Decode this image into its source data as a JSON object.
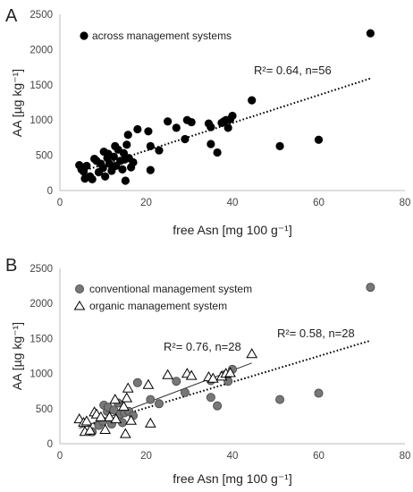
{
  "chart_data": [
    {
      "panel": "A",
      "type": "scatter",
      "xlabel": "free Asn [mg 100 g⁻¹]",
      "ylabel": "AA [µg kg⁻¹]",
      "xlim": [
        0,
        80
      ],
      "ylim": [
        0,
        2500
      ],
      "xticks": [
        "0",
        "20",
        "40",
        "60",
        "80"
      ],
      "yticks": [
        "0",
        "500",
        "1000",
        "1500",
        "2000",
        "2500"
      ],
      "grid": false,
      "legend_position": "top-left",
      "series": [
        {
          "name": "across management systems",
          "marker": "filled-circle",
          "color": "#000000",
          "points": [
            [
              4.5,
              360
            ],
            [
              5.5,
              270
            ],
            [
              5.8,
              170
            ],
            [
              6.2,
              350
            ],
            [
              7.0,
              200
            ],
            [
              7.5,
              160
            ],
            [
              8.0,
              450
            ],
            [
              8.5,
              420
            ],
            [
              9.0,
              260
            ],
            [
              9.5,
              380
            ],
            [
              10.0,
              320
            ],
            [
              10.2,
              550
            ],
            [
              10.5,
              200
            ],
            [
              11.0,
              460
            ],
            [
              11.2,
              520
            ],
            [
              11.5,
              380
            ],
            [
              12.0,
              280
            ],
            [
              12.5,
              480
            ],
            [
              12.8,
              630
            ],
            [
              13.0,
              350
            ],
            [
              13.5,
              580
            ],
            [
              14.0,
              420
            ],
            [
              14.5,
              300
            ],
            [
              14.8,
              530
            ],
            [
              15.0,
              440
            ],
            [
              15.2,
              140
            ],
            [
              15.5,
              650
            ],
            [
              15.8,
              790
            ],
            [
              16.0,
              460
            ],
            [
              16.5,
              330
            ],
            [
              17.0,
              400
            ],
            [
              18.0,
              870
            ],
            [
              20.5,
              840
            ],
            [
              21.0,
              630
            ],
            [
              21.0,
              290
            ],
            [
              23.0,
              570
            ],
            [
              25.0,
              980
            ],
            [
              27.0,
              890
            ],
            [
              29.0,
              730
            ],
            [
              29.5,
              1000
            ],
            [
              30.5,
              970
            ],
            [
              34.5,
              950
            ],
            [
              35.0,
              900
            ],
            [
              35.0,
              660
            ],
            [
              36.5,
              540
            ],
            [
              37.5,
              960
            ],
            [
              38.0,
              980
            ],
            [
              38.5,
              1000
            ],
            [
              39.0,
              890
            ],
            [
              39.5,
              1010
            ],
            [
              40.0,
              1060
            ],
            [
              44.5,
              1280
            ],
            [
              51.0,
              630
            ],
            [
              60.0,
              720
            ],
            [
              72.0,
              2230
            ],
            [
              5.0,
              300
            ]
          ]
        }
      ],
      "trendlines": [
        {
          "from": [
            4.5,
            260
          ],
          "to": [
            72.0,
            1590
          ],
          "style": "dotted",
          "color": "#000000"
        }
      ],
      "annotations": [
        "R²= 0.64, n=56"
      ]
    },
    {
      "panel": "B",
      "type": "scatter",
      "xlabel": "free Asn [mg 100 g⁻¹]",
      "ylabel": "AA [µg kg⁻¹]",
      "xlim": [
        0,
        80
      ],
      "ylim": [
        0,
        2500
      ],
      "xticks": [
        "0",
        "20",
        "40",
        "60",
        "80"
      ],
      "yticks": [
        "0",
        "500",
        "1000",
        "1500",
        "2000",
        "2500"
      ],
      "grid": false,
      "legend_position": "top-left",
      "series": [
        {
          "name": "conventional management system",
          "marker": "filled-circle",
          "color": "#777777",
          "points": [
            [
              7.5,
              170
            ],
            [
              9.0,
              260
            ],
            [
              10.0,
              320
            ],
            [
              10.2,
              550
            ],
            [
              11.0,
              460
            ],
            [
              11.2,
              520
            ],
            [
              12.0,
              280
            ],
            [
              12.5,
              480
            ],
            [
              13.5,
              580
            ],
            [
              14.0,
              420
            ],
            [
              14.5,
              300
            ],
            [
              15.0,
              440
            ],
            [
              16.0,
              460
            ],
            [
              17.0,
              400
            ],
            [
              18.0,
              870
            ],
            [
              21.0,
              630
            ],
            [
              23.0,
              570
            ],
            [
              27.0,
              890
            ],
            [
              29.0,
              730
            ],
            [
              35.0,
              900
            ],
            [
              35.0,
              660
            ],
            [
              36.5,
              540
            ],
            [
              38.0,
              980
            ],
            [
              39.0,
              890
            ],
            [
              40.0,
              1060
            ],
            [
              51.0,
              630
            ],
            [
              60.0,
              720
            ],
            [
              72.0,
              2230
            ]
          ]
        },
        {
          "name": "organic management system",
          "marker": "open-triangle",
          "color": "#000000",
          "points": [
            [
              4.5,
              350
            ],
            [
              5.5,
              300
            ],
            [
              5.8,
              170
            ],
            [
              6.2,
              320
            ],
            [
              7.0,
              190
            ],
            [
              8.0,
              450
            ],
            [
              8.5,
              420
            ],
            [
              9.5,
              380
            ],
            [
              10.5,
              200
            ],
            [
              11.5,
              380
            ],
            [
              12.8,
              630
            ],
            [
              13.0,
              350
            ],
            [
              14.8,
              530
            ],
            [
              15.2,
              140
            ],
            [
              15.5,
              650
            ],
            [
              15.8,
              790
            ],
            [
              16.5,
              330
            ],
            [
              20.5,
              840
            ],
            [
              21.0,
              290
            ],
            [
              25.0,
              980
            ],
            [
              29.5,
              1000
            ],
            [
              30.5,
              970
            ],
            [
              34.5,
              950
            ],
            [
              35.5,
              930
            ],
            [
              37.5,
              960
            ],
            [
              38.5,
              1000
            ],
            [
              39.5,
              1010
            ],
            [
              44.5,
              1280
            ]
          ]
        }
      ],
      "trendlines": [
        {
          "from": [
            4.5,
            220
          ],
          "to": [
            44.5,
            1150
          ],
          "style": "solid",
          "color": "#333333"
        },
        {
          "from": [
            7.0,
            270
          ],
          "to": [
            72.0,
            1470
          ],
          "style": "dotted",
          "color": "#000000"
        }
      ],
      "annotations": [
        "R²= 0.76, n=28",
        "R²= 0.58, n=28"
      ]
    }
  ]
}
